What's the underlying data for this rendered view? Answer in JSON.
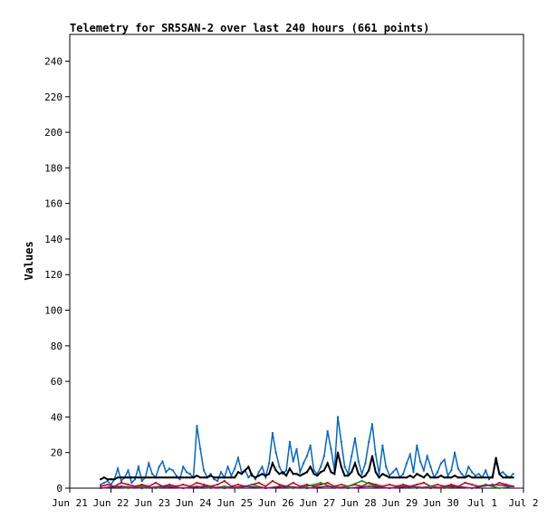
{
  "chart_data": {
    "type": "line",
    "title": "Telemetry for SR5SAN-2 over last 240 hours (661 points)",
    "xlabel": "",
    "ylabel": "Values",
    "ylim": [
      0,
      255
    ],
    "yticks": [
      0,
      20,
      40,
      60,
      80,
      100,
      120,
      140,
      160,
      180,
      200,
      220,
      240
    ],
    "xlim": [
      0,
      264
    ],
    "xticks": [
      {
        "label": "Jun 21",
        "hours": 0
      },
      {
        "label": "Jun 22",
        "hours": 24
      },
      {
        "label": "Jun 23",
        "hours": 48
      },
      {
        "label": "Jun 24",
        "hours": 72
      },
      {
        "label": "Jun 25",
        "hours": 96
      },
      {
        "label": "Jun 26",
        "hours": 120
      },
      {
        "label": "Jun 27",
        "hours": 144
      },
      {
        "label": "Jun 28",
        "hours": 168
      },
      {
        "label": "Jun 29",
        "hours": 192
      },
      {
        "label": "Jun 30",
        "hours": 216
      },
      {
        "label": "Jul 1",
        "hours": 240
      },
      {
        "label": "Jul 2",
        "hours": 264
      }
    ],
    "grid": false,
    "legend": "none",
    "series": [
      {
        "color": "#0066cc",
        "x": [
          18,
          20,
          22,
          24,
          26,
          28,
          30,
          32,
          34,
          36,
          38,
          40,
          42,
          44,
          46,
          48,
          50,
          52,
          54,
          56,
          58,
          60,
          62,
          64,
          66,
          68,
          70,
          72,
          74,
          76,
          78,
          80,
          82,
          84,
          86,
          88,
          90,
          92,
          94,
          96,
          98,
          100,
          102,
          104,
          106,
          108,
          110,
          112,
          114,
          116,
          118,
          120,
          122,
          124,
          126,
          128,
          130,
          132,
          134,
          136,
          138,
          140,
          142,
          144,
          146,
          148,
          150,
          152,
          154,
          156,
          158,
          160,
          162,
          164,
          166,
          168,
          170,
          172,
          174,
          176,
          178,
          180,
          182,
          184,
          186,
          188,
          190,
          192,
          194,
          196,
          198,
          200,
          202,
          204,
          206,
          208,
          210,
          212,
          214,
          216,
          218,
          220,
          222,
          224,
          226,
          228,
          230,
          232,
          234,
          236,
          238,
          240,
          242,
          244,
          246,
          248,
          250,
          252,
          254,
          256,
          258
        ],
        "y": [
          2,
          3,
          4,
          2,
          5,
          11,
          4,
          6,
          10,
          3,
          5,
          12,
          4,
          6,
          14,
          8,
          6,
          12,
          15,
          9,
          11,
          10,
          7,
          5,
          12,
          9,
          8,
          6,
          35,
          22,
          10,
          6,
          8,
          5,
          4,
          9,
          6,
          12,
          7,
          11,
          17,
          9,
          10,
          6,
          8,
          5,
          9,
          12,
          6,
          14,
          31,
          20,
          12,
          8,
          10,
          26,
          15,
          22,
          9,
          14,
          18,
          24,
          10,
          8,
          12,
          18,
          32,
          22,
          10,
          40,
          26,
          12,
          8,
          18,
          28,
          15,
          8,
          14,
          26,
          36,
          19,
          8,
          24,
          12,
          7,
          9,
          11,
          6,
          8,
          14,
          19,
          9,
          24,
          15,
          10,
          18,
          12,
          6,
          9,
          14,
          16,
          7,
          10,
          20,
          11,
          8,
          6,
          12,
          9,
          7,
          8,
          6,
          10,
          5,
          7,
          15,
          8,
          9,
          7,
          6,
          8
        ]
      },
      {
        "color": "#000000",
        "x": [
          18,
          20,
          22,
          24,
          26,
          28,
          30,
          32,
          34,
          36,
          38,
          40,
          42,
          44,
          46,
          48,
          50,
          52,
          54,
          56,
          58,
          60,
          62,
          64,
          66,
          68,
          70,
          72,
          74,
          76,
          78,
          80,
          82,
          84,
          86,
          88,
          90,
          92,
          94,
          96,
          98,
          100,
          102,
          104,
          106,
          108,
          110,
          112,
          114,
          116,
          118,
          120,
          122,
          124,
          126,
          128,
          130,
          132,
          134,
          136,
          138,
          140,
          142,
          144,
          146,
          148,
          150,
          152,
          154,
          156,
          158,
          160,
          162,
          164,
          166,
          168,
          170,
          172,
          174,
          176,
          178,
          180,
          182,
          184,
          186,
          188,
          190,
          192,
          194,
          196,
          198,
          200,
          202,
          204,
          206,
          208,
          210,
          212,
          214,
          216,
          218,
          220,
          222,
          224,
          226,
          228,
          230,
          232,
          234,
          236,
          238,
          240,
          242,
          244,
          246,
          248,
          250,
          252,
          254,
          256,
          258
        ],
        "y": [
          5,
          6,
          5,
          5,
          5,
          6,
          6,
          6,
          6,
          6,
          6,
          6,
          6,
          6,
          6,
          6,
          6,
          6,
          6,
          6,
          6,
          6,
          6,
          6,
          6,
          6,
          6,
          6,
          7,
          6,
          6,
          6,
          7,
          6,
          6,
          6,
          6,
          6,
          6,
          6,
          9,
          8,
          10,
          12,
          7,
          6,
          7,
          8,
          7,
          8,
          14,
          10,
          8,
          9,
          7,
          11,
          8,
          8,
          7,
          8,
          9,
          12,
          8,
          7,
          9,
          10,
          14,
          9,
          8,
          20,
          12,
          7,
          7,
          9,
          14,
          8,
          6,
          7,
          10,
          18,
          9,
          6,
          8,
          7,
          6,
          6,
          6,
          6,
          6,
          6,
          7,
          6,
          8,
          7,
          6,
          8,
          6,
          6,
          6,
          7,
          6,
          6,
          6,
          7,
          6,
          6,
          6,
          7,
          6,
          6,
          6,
          6,
          6,
          6,
          6,
          17,
          8,
          6,
          6,
          6,
          6
        ]
      },
      {
        "color": "#cc0000",
        "x": [
          18,
          22,
          26,
          30,
          34,
          38,
          42,
          46,
          50,
          54,
          58,
          62,
          66,
          70,
          74,
          78,
          82,
          86,
          90,
          94,
          98,
          102,
          106,
          110,
          114,
          118,
          122,
          126,
          130,
          134,
          138,
          142,
          146,
          150,
          154,
          158,
          162,
          166,
          170,
          174,
          178,
          182,
          186,
          190,
          194,
          198,
          202,
          206,
          210,
          214,
          218,
          222,
          226,
          230,
          234,
          238,
          242,
          246,
          250,
          254,
          258
        ],
        "y": [
          1,
          2,
          1,
          3,
          2,
          1,
          2,
          1,
          3,
          1,
          2,
          1,
          2,
          1,
          3,
          2,
          1,
          2,
          4,
          1,
          2,
          1,
          2,
          3,
          1,
          4,
          2,
          1,
          3,
          1,
          2,
          1,
          2,
          3,
          1,
          2,
          1,
          2,
          1,
          3,
          2,
          1,
          2,
          1,
          2,
          1,
          2,
          3,
          1,
          2,
          1,
          2,
          1,
          3,
          2,
          1,
          2,
          1,
          3,
          2,
          1
        ]
      },
      {
        "color": "#009900",
        "x": [
          18,
          26,
          34,
          42,
          50,
          58,
          66,
          74,
          82,
          90,
          98,
          106,
          114,
          122,
          130,
          138,
          146,
          154,
          162,
          170,
          178,
          186,
          194,
          202,
          210,
          218,
          226,
          234,
          242,
          250,
          258
        ],
        "y": [
          0,
          1,
          0,
          1,
          0,
          1,
          0,
          1,
          0,
          1,
          0,
          2,
          0,
          1,
          0,
          1,
          3,
          0,
          1,
          4,
          1,
          0,
          1,
          0,
          1,
          0,
          1,
          0,
          2,
          0,
          1
        ]
      },
      {
        "color": "#990099",
        "x": [
          18,
          30,
          42,
          54,
          66,
          78,
          90,
          102,
          114,
          126,
          138,
          150,
          162,
          174,
          186,
          198,
          210,
          222,
          234,
          246,
          258
        ],
        "y": [
          0,
          1,
          0,
          1,
          0,
          1,
          0,
          1,
          0,
          1,
          0,
          1,
          0,
          1,
          0,
          1,
          0,
          1,
          0,
          2,
          1
        ]
      }
    ]
  }
}
